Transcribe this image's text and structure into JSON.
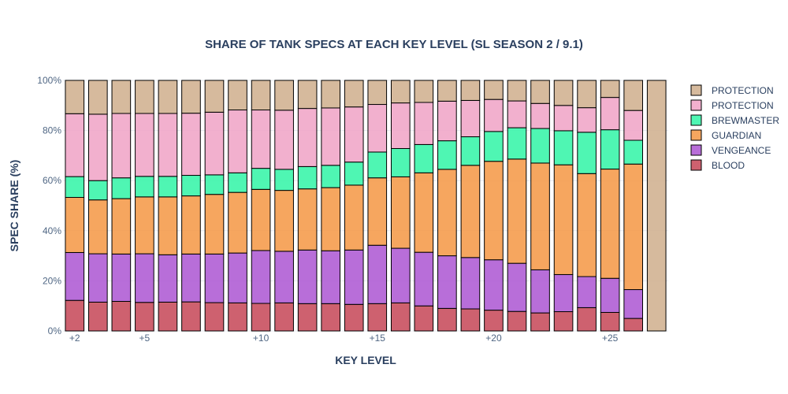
{
  "chart_data": {
    "type": "bar",
    "stacked": true,
    "title": "SHARE OF TANK SPECS AT EACH KEY LEVEL (SL SEASON 2 / 9.1)",
    "xlabel": "KEY LEVEL",
    "ylabel": "SPEC SHARE (%)",
    "ylim": [
      0,
      100
    ],
    "grid": true,
    "legend_position": "right",
    "y_ticks": [
      "0%",
      "20%",
      "40%",
      "60%",
      "80%",
      "100%"
    ],
    "x_ticks": [
      {
        "value": 2,
        "label": "+2"
      },
      {
        "value": 5,
        "label": "+5"
      },
      {
        "value": 10,
        "label": "+10"
      },
      {
        "value": 15,
        "label": "+15"
      },
      {
        "value": 20,
        "label": "+20"
      },
      {
        "value": 25,
        "label": "+25"
      }
    ],
    "categories": [
      2,
      3,
      4,
      5,
      6,
      7,
      8,
      9,
      10,
      11,
      12,
      13,
      14,
      15,
      16,
      17,
      18,
      19,
      20,
      21,
      22,
      23,
      24,
      25,
      26,
      27
    ],
    "series": [
      {
        "name": "BLOOD",
        "color": "#c9505f",
        "values": [
          12.2,
          11.5,
          11.8,
          11.4,
          11.5,
          11.6,
          11.3,
          11.2,
          11.0,
          11.2,
          10.9,
          10.9,
          10.6,
          10.9,
          11.2,
          10.0,
          9.0,
          8.8,
          8.3,
          7.8,
          7.2,
          7.7,
          9.3,
          7.4,
          5.0,
          0
        ]
      },
      {
        "name": "VENGEANCE",
        "color": "#b05ed5",
        "values": [
          19.1,
          19.3,
          18.9,
          19.4,
          18.9,
          19.1,
          19.4,
          19.9,
          21.1,
          20.6,
          21.4,
          21.1,
          21.7,
          23.3,
          21.8,
          21.4,
          21.0,
          20.5,
          20.1,
          19.2,
          17.2,
          14.8,
          12.4,
          13.6,
          11.5,
          0
        ]
      },
      {
        "name": "GUARDIAN",
        "color": "#f59c4e",
        "values": [
          22.0,
          21.5,
          22.1,
          22.7,
          23.1,
          23.2,
          23.8,
          24.2,
          24.4,
          24.3,
          24.4,
          25.2,
          25.9,
          26.9,
          28.5,
          31.7,
          34.5,
          36.8,
          39.3,
          41.6,
          42.6,
          43.8,
          41.1,
          43.6,
          50.1,
          0
        ]
      },
      {
        "name": "BREWMASTER",
        "color": "#3cf5ab",
        "values": [
          8.3,
          7.7,
          8.3,
          8.2,
          8.2,
          8.2,
          7.8,
          7.8,
          8.4,
          8.4,
          8.9,
          8.9,
          9.2,
          10.3,
          11.3,
          11.3,
          11.4,
          11.4,
          11.9,
          12.5,
          13.8,
          13.6,
          16.5,
          15.7,
          9.5,
          0
        ]
      },
      {
        "name": "PROTECTION",
        "color": "#f1a7c9",
        "values": [
          25.1,
          26.5,
          25.7,
          25.1,
          25.1,
          24.8,
          25.0,
          25.1,
          23.3,
          23.6,
          23.2,
          22.9,
          22.0,
          19.0,
          18.2,
          16.8,
          15.8,
          14.5,
          12.8,
          10.7,
          10.0,
          10.1,
          9.8,
          12.9,
          11.9,
          0
        ]
      },
      {
        "name": "PROTECTION",
        "color": "#d2b392",
        "values": [
          13.3,
          13.5,
          13.2,
          13.2,
          13.2,
          13.1,
          12.7,
          11.8,
          11.8,
          11.9,
          11.2,
          11.0,
          10.6,
          9.6,
          9.0,
          8.8,
          8.3,
          8.0,
          7.6,
          8.2,
          9.2,
          10.0,
          10.9,
          6.8,
          12.0,
          100
        ]
      }
    ]
  }
}
